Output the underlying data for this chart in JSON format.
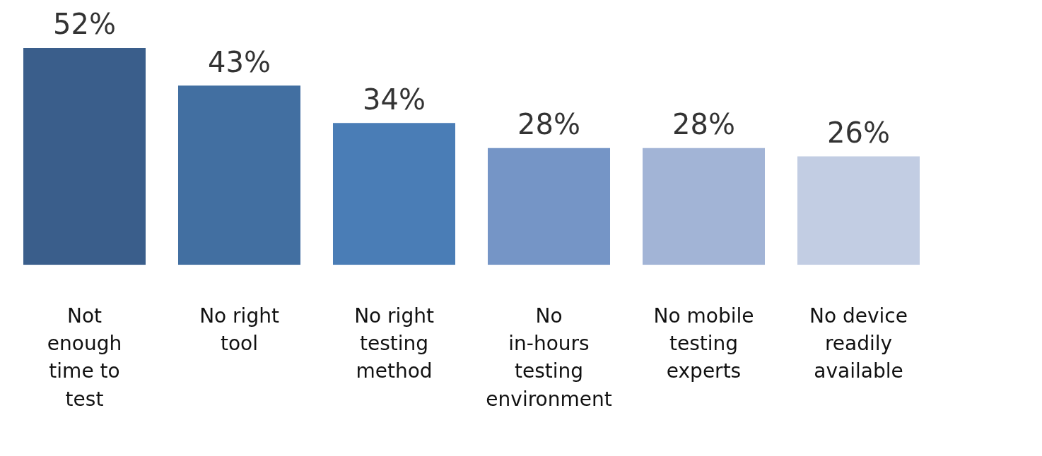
{
  "chart_data": {
    "type": "bar",
    "categories": [
      "Not enough time to test",
      "No right tool",
      "No right testing method",
      "No in-hours testing environment",
      "No mobile testing experts",
      "No device readily available"
    ],
    "values": [
      52,
      43,
      34,
      28,
      28,
      26
    ],
    "colors": [
      "#3a5e8b",
      "#426fa1",
      "#4a7db6",
      "#7595c6",
      "#a2b4d6",
      "#c2cde3"
    ],
    "value_labels": [
      "52%",
      "43%",
      "34%",
      "28%",
      "28%",
      "26%"
    ],
    "legend": false
  }
}
